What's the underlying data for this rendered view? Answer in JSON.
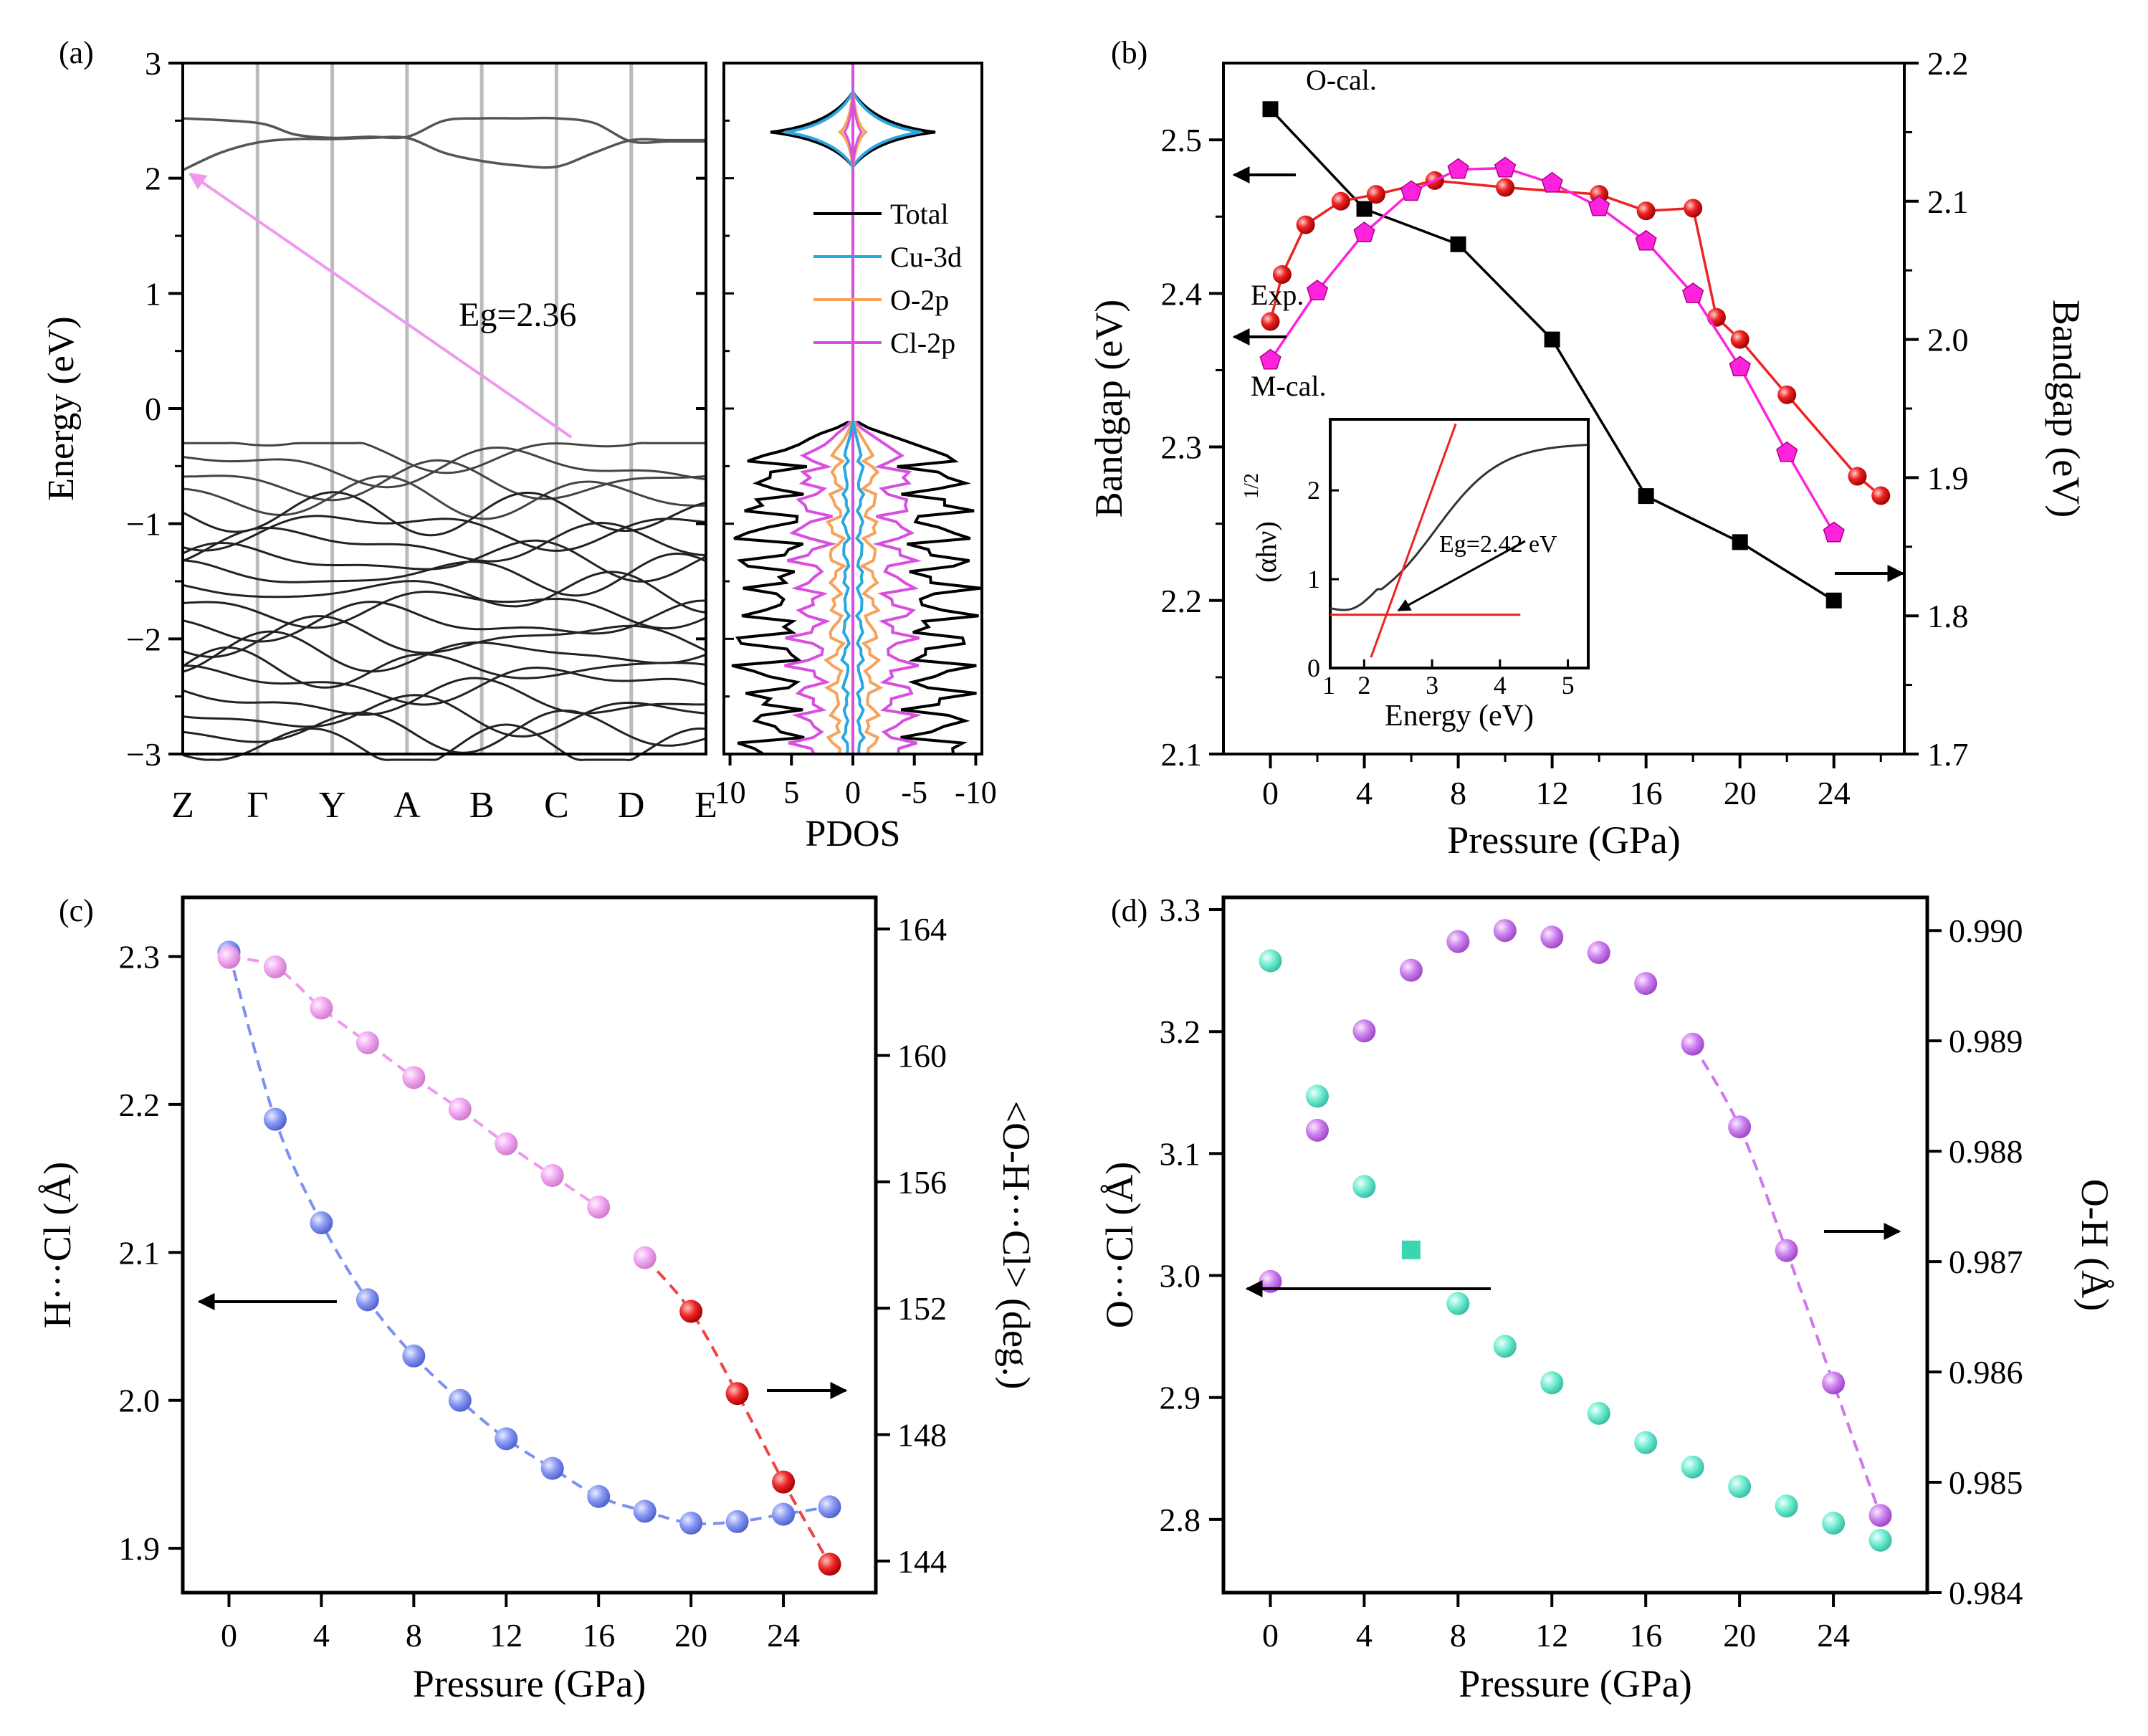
{
  "colors": {
    "black": "#000000",
    "band": "#555555",
    "grid": "#bbbbbb",
    "cu3d": "#2aa7e0",
    "o2p": "#f5a25a",
    "cl2p": "#d84fe0",
    "arrow_pink": "#ee99ee",
    "red": "#ee2222",
    "magenta": "#ff22dd",
    "blue": "#7d8ff0",
    "pink": "#ee99ee",
    "teal": "#66e8cc",
    "violet": "#cc77ee"
  },
  "chart_data": [
    {
      "id": "a",
      "panel_label": "(a)",
      "type": "line",
      "title": "",
      "ylabel": "Energy (eV)",
      "ylim": [
        -3,
        3
      ],
      "yticks": [
        "3",
        "2",
        "1",
        "0",
        "−1",
        "−2",
        "−3"
      ],
      "kpoints": [
        "Z",
        "Γ",
        "Y",
        "A",
        "B",
        "C",
        "D",
        "E"
      ],
      "annotation": "Eg=2.36",
      "gap_arrow": {
        "from_k": 5.2,
        "from_e": -0.25,
        "to_k": 0.0,
        "to_e": 2.07
      },
      "conduction_bands": [
        {
          "k": [
            0,
            1,
            1.5,
            2,
            2.5,
            3,
            3.5,
            4,
            4.5,
            5,
            5.5,
            6,
            6.5,
            7
          ],
          "e": [
            2.52,
            2.48,
            2.38,
            2.35,
            2.36,
            2.36,
            2.5,
            2.52,
            2.52,
            2.52,
            2.48,
            2.32,
            2.32,
            2.32
          ]
        },
        {
          "k": [
            0,
            0.5,
            1,
            1.5,
            2,
            2.5,
            3,
            3.5,
            4,
            4.5,
            5,
            5.5,
            6,
            6.5,
            7
          ],
          "e": [
            2.07,
            2.22,
            2.31,
            2.34,
            2.34,
            2.35,
            2.35,
            2.22,
            2.15,
            2.11,
            2.1,
            2.22,
            2.33,
            2.33,
            2.33
          ]
        }
      ],
      "pdos": {
        "xlabel": "PDOS",
        "xticks": [
          "10",
          "5",
          "0",
          "-5",
          "-10"
        ],
        "legend": [
          "Total",
          "Cu-3d",
          "O-2p",
          "Cl-2p"
        ]
      }
    },
    {
      "id": "b",
      "panel_label": "(b)",
      "type": "line",
      "xlabel": "Pressure (GPa)",
      "ylabel": "Bandgap (eV)",
      "y2label": "Bandgap (eV)",
      "xlim": [
        -2,
        27
      ],
      "ylim": [
        2.1,
        2.55
      ],
      "y2lim": [
        1.7,
        2.2
      ],
      "xticks": [
        0,
        4,
        8,
        12,
        16,
        20,
        24
      ],
      "yticks": [
        2.1,
        2.2,
        2.3,
        2.4,
        2.5
      ],
      "y2ticks": [
        1.7,
        1.8,
        1.9,
        2.0,
        2.1,
        2.2
      ],
      "series": [
        {
          "name": "O-cal.",
          "axis": "left",
          "marker": "square",
          "color": "#000000",
          "x": [
            0,
            4,
            8,
            12,
            16,
            20,
            24
          ],
          "y": [
            2.52,
            2.455,
            2.432,
            2.37,
            2.268,
            2.238,
            2.2
          ]
        },
        {
          "name": "Exp.",
          "axis": "right",
          "marker": "circle",
          "color": "#ee2222",
          "x": [
            0,
            0.5,
            1.5,
            3,
            4.5,
            7,
            10,
            14,
            16,
            18,
            19,
            20,
            22,
            25,
            26
          ],
          "y": [
            2.013,
            2.047,
            2.083,
            2.1,
            2.105,
            2.115,
            2.11,
            2.105,
            2.093,
            2.095,
            2.016,
            2.0,
            1.96,
            1.901,
            1.887
          ]
        },
        {
          "name": "M-cal.",
          "axis": "right",
          "marker": "pentagon",
          "color": "#ff22dd",
          "x": [
            0,
            2,
            4,
            6,
            8,
            10,
            12,
            14,
            16,
            18,
            20,
            22,
            24
          ],
          "y": [
            1.985,
            2.035,
            2.077,
            2.107,
            2.123,
            2.124,
            2.113,
            2.096,
            2.071,
            2.033,
            1.98,
            1.918,
            1.86
          ]
        }
      ],
      "labels": [
        "O-cal.",
        "Exp.",
        "M-cal."
      ],
      "inset": {
        "xlabel": "Energy (eV)",
        "ylabel": "(αhν)",
        "ylabel_sup": "1/2",
        "xticks": [
          1,
          2,
          3,
          4,
          5
        ],
        "yticks": [
          0,
          1,
          2
        ],
        "annotation": "Eg=2.42 eV"
      }
    },
    {
      "id": "c",
      "panel_label": "(c)",
      "type": "scatter",
      "xlabel": "Pressure (GPa)",
      "ylabel": "H···Cl (Å)",
      "y2label": "<O-H···Cl> (deg.)",
      "xlim": [
        -2,
        28
      ],
      "ylim": [
        1.87,
        2.34
      ],
      "y2lim": [
        143,
        165
      ],
      "xticks": [
        0,
        4,
        8,
        12,
        16,
        20,
        24
      ],
      "yticks": [
        1.9,
        2.0,
        2.1,
        2.2,
        2.3
      ],
      "y2ticks": [
        144,
        148,
        152,
        156,
        160,
        164
      ],
      "series": [
        {
          "name": "H···Cl",
          "axis": "left",
          "color": "#7d8ff0",
          "x": [
            0,
            2,
            4,
            6,
            8,
            10,
            12,
            14,
            16,
            18,
            20,
            22,
            24,
            26
          ],
          "y": [
            2.303,
            2.19,
            2.12,
            2.068,
            2.03,
            2.0,
            1.974,
            1.954,
            1.935,
            1.925,
            1.917,
            1.918,
            1.923,
            1.928
          ]
        },
        {
          "name": "<O-H···Cl>",
          "axis": "right",
          "color": "#ee99ee",
          "x": [
            0,
            2,
            4,
            6,
            8,
            10,
            12,
            14,
            16,
            18,
            20,
            22,
            24,
            26
          ],
          "y": [
            163.1,
            162.8,
            161.5,
            160.4,
            159.3,
            158.3,
            157.2,
            156.2,
            155.2,
            153.6,
            151.9,
            149.3,
            146.5,
            143.9
          ]
        }
      ]
    },
    {
      "id": "d",
      "panel_label": "(d)",
      "type": "scatter",
      "xlabel": "Pressure (GPa)",
      "ylabel": "O···Cl (Å)",
      "y2label": "O-H (Å)",
      "xlim": [
        -2,
        28
      ],
      "ylim": [
        2.74,
        3.31
      ],
      "y2lim": [
        0.984,
        0.9903
      ],
      "xticks": [
        0,
        4,
        8,
        12,
        16,
        20,
        24
      ],
      "yticks": [
        2.8,
        2.9,
        3.0,
        3.1,
        3.2,
        3.3
      ],
      "y2ticks": [
        0.984,
        0.985,
        0.986,
        0.987,
        0.988,
        0.989,
        0.99
      ],
      "series": [
        {
          "name": "O···Cl",
          "axis": "left",
          "color": "#66e8cc",
          "x": [
            0,
            2,
            4,
            6,
            8,
            10,
            12,
            14,
            16,
            18,
            20,
            22,
            24,
            26
          ],
          "y": [
            3.258,
            3.147,
            3.073,
            3.021,
            2.977,
            2.942,
            2.912,
            2.887,
            2.863,
            2.843,
            2.827,
            2.811,
            2.797,
            2.783
          ]
        },
        {
          "name": "O-H",
          "axis": "right",
          "color": "#cc77ee",
          "x": [
            0,
            2,
            4,
            6,
            8,
            10,
            12,
            14,
            16,
            18,
            20,
            22,
            24,
            26
          ],
          "y": [
            0.98682,
            0.98819,
            0.98909,
            0.98964,
            0.9899,
            0.99,
            0.98994,
            0.9898,
            0.98952,
            0.98897,
            0.98822,
            0.9871,
            0.9859,
            0.9847
          ]
        }
      ]
    }
  ]
}
